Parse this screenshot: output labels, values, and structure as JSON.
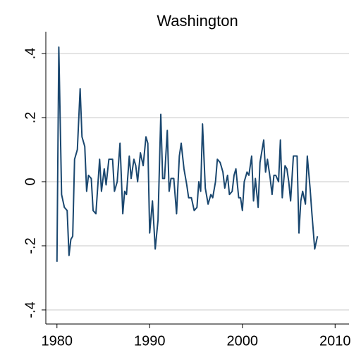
{
  "chart_data": {
    "type": "line",
    "title": "Washington",
    "x": [
      1980.0,
      1980.2,
      1980.5,
      1980.8,
      1981.1,
      1981.3,
      1981.5,
      1981.7,
      1981.9,
      1982.2,
      1982.5,
      1982.7,
      1983.0,
      1983.2,
      1983.4,
      1983.7,
      1983.9,
      1984.2,
      1984.6,
      1984.8,
      1985.1,
      1985.3,
      1985.6,
      1986.0,
      1986.2,
      1986.5,
      1986.8,
      1987.1,
      1987.3,
      1987.5,
      1987.8,
      1988.0,
      1988.3,
      1988.5,
      1988.7,
      1989.0,
      1989.3,
      1989.6,
      1989.8,
      1990.0,
      1990.3,
      1990.6,
      1990.9,
      1991.2,
      1991.4,
      1991.6,
      1991.9,
      1992.1,
      1992.3,
      1992.6,
      1992.9,
      1993.2,
      1993.4,
      1993.7,
      1994.0,
      1994.2,
      1994.5,
      1994.8,
      1995.1,
      1995.3,
      1995.5,
      1995.7,
      1996.0,
      1996.3,
      1996.6,
      1996.8,
      1997.1,
      1997.3,
      1997.6,
      1997.9,
      1998.1,
      1998.4,
      1998.6,
      1998.9,
      1999.1,
      1999.3,
      1999.6,
      1999.8,
      2000.0,
      2000.2,
      2000.5,
      2000.7,
      2001.0,
      2001.2,
      2001.4,
      2001.7,
      2001.9,
      2002.3,
      2002.5,
      2002.7,
      2003.0,
      2003.2,
      2003.4,
      2003.6,
      2003.9,
      2004.1,
      2004.3,
      2004.6,
      2004.8,
      2005.0,
      2005.2,
      2005.5,
      2005.9,
      2006.1,
      2006.3,
      2006.5,
      2006.8,
      2007.0,
      2007.3,
      2007.5,
      2007.8,
      2008.1
    ],
    "series": [
      {
        "color": "#1a476f",
        "values": [
          -0.25,
          0.42,
          -0.04,
          -0.08,
          -0.09,
          -0.23,
          -0.18,
          -0.17,
          0.07,
          0.1,
          0.29,
          0.14,
          0.11,
          -0.03,
          0.02,
          0.01,
          -0.09,
          -0.1,
          0.07,
          -0.03,
          0.04,
          -0.01,
          0.07,
          0.07,
          -0.03,
          0.0,
          0.12,
          -0.1,
          -0.03,
          -0.04,
          0.08,
          0.01,
          0.07,
          0.05,
          0.0,
          0.09,
          0.05,
          0.14,
          0.12,
          -0.16,
          -0.06,
          -0.21,
          -0.12,
          0.21,
          0.01,
          0.01,
          0.16,
          -0.03,
          0.01,
          0.01,
          -0.1,
          0.08,
          0.12,
          0.04,
          -0.01,
          -0.05,
          -0.05,
          -0.09,
          -0.08,
          0.0,
          -0.03,
          0.18,
          -0.02,
          -0.07,
          -0.04,
          -0.05,
          0.0,
          0.07,
          0.06,
          0.03,
          -0.02,
          0.02,
          -0.04,
          -0.03,
          0.02,
          0.04,
          -0.05,
          -0.05,
          -0.09,
          0.0,
          0.03,
          0.02,
          0.08,
          -0.06,
          0.01,
          -0.08,
          0.06,
          0.13,
          0.03,
          0.07,
          0.01,
          -0.04,
          0.02,
          0.02,
          0.0,
          0.13,
          -0.05,
          0.05,
          0.04,
          0.0,
          -0.06,
          0.08,
          0.08,
          -0.16,
          -0.06,
          -0.03,
          -0.07,
          0.08,
          -0.02,
          -0.1,
          -0.21,
          -0.17
        ]
      }
    ],
    "xlim": [
      1978.8,
      2011.5
    ],
    "xticks": [
      1980,
      1990,
      2000,
      2010
    ],
    "ylim": [
      -0.444,
      0.468
    ],
    "yticks": [
      {
        "value": -0.4,
        "label": "-.4"
      },
      {
        "value": -0.2,
        "label": "-.2"
      },
      0,
      {
        "value": 0.2,
        "label": ".2"
      },
      {
        "value": 0.4,
        "label": ".4"
      }
    ],
    "grid": true
  }
}
